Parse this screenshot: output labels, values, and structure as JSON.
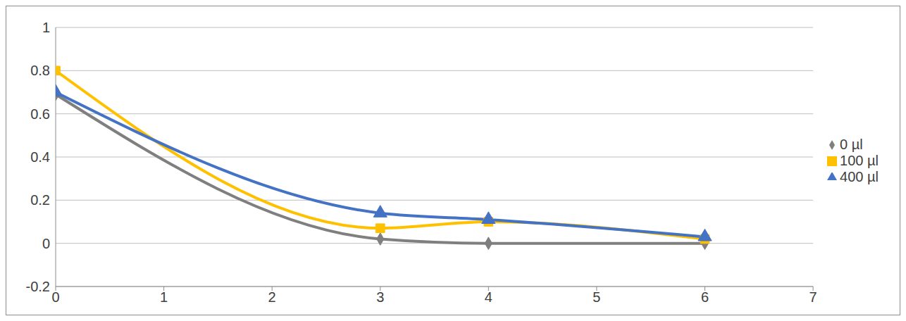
{
  "chart_data": {
    "type": "line",
    "x": [
      0,
      3,
      4,
      6
    ],
    "series": [
      {
        "name": "0 µl",
        "color": "#7f7f7f",
        "marker": "diamond",
        "values": [
          0.69,
          0.02,
          0,
          0
        ]
      },
      {
        "name": "100 µl",
        "color": "#ffc000",
        "marker": "square",
        "values": [
          0.8,
          0.07,
          0.1,
          0.02
        ]
      },
      {
        "name": "400 µl",
        "color": "#4472c4",
        "marker": "triangle",
        "values": [
          0.7,
          0.14,
          0.11,
          0.03
        ]
      }
    ],
    "xlim": [
      0,
      7
    ],
    "xticks": [
      0,
      1,
      2,
      3,
      4,
      5,
      6,
      7
    ],
    "ylim": [
      -0.2,
      1
    ],
    "yticks": [
      -0.2,
      0,
      0.2,
      0.4,
      0.6,
      0.8,
      1
    ],
    "grid": true,
    "legend": "right"
  }
}
